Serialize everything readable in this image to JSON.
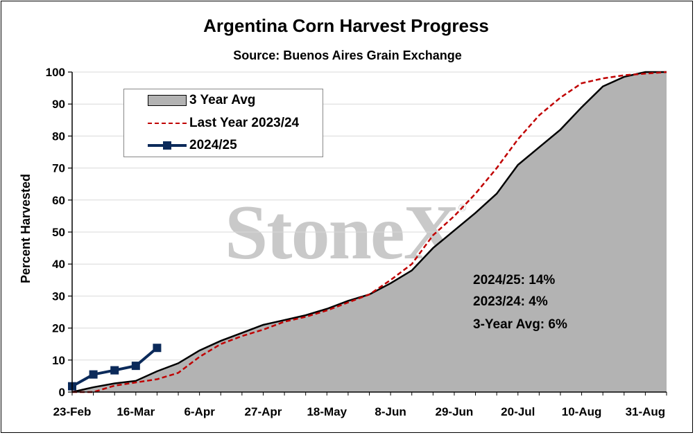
{
  "chart_data": {
    "type": "line",
    "title": "Argentina Corn Harvest Progress",
    "subtitle": "Source: Buenos Aires Grain Exchange",
    "ylabel": "Percent Harvested",
    "xlabel": "",
    "ylim": [
      0,
      100
    ],
    "yticks": [
      0,
      10,
      20,
      30,
      40,
      50,
      60,
      70,
      80,
      90,
      100
    ],
    "x_tick_labels": [
      "23-Feb",
      "16-Mar",
      "6-Apr",
      "27-Apr",
      "18-May",
      "8-Jun",
      "29-Jun",
      "20-Jul",
      "10-Aug",
      "31-Aug"
    ],
    "grid": "horizontal",
    "legend": "top-left",
    "series": [
      {
        "name": "3 Year Avg",
        "style": "area",
        "color": "#b3b3b3",
        "line_color": "#000000",
        "values": [
          0,
          1.5,
          2.7,
          3.5,
          6.5,
          9,
          13,
          16,
          18.5,
          21,
          22.5,
          24,
          26,
          28.5,
          30.5,
          34,
          38,
          45,
          50.5,
          56,
          62,
          71,
          76.5,
          82,
          89,
          95.5,
          98.5,
          100,
          100
        ]
      },
      {
        "name": "Last Year 2023/24",
        "style": "dashed",
        "color": "#c00000",
        "values": [
          0,
          0,
          2,
          3,
          4,
          6,
          11,
          15,
          17.5,
          19.5,
          22,
          23.5,
          25.5,
          28,
          30.5,
          35,
          40,
          49,
          55,
          62,
          70,
          79,
          86.5,
          92,
          96.5,
          98,
          99,
          99.5,
          100
        ]
      },
      {
        "name": "2024/25",
        "style": "line-marker",
        "color": "#0b2a5a",
        "values": [
          1.8,
          5.5,
          6.8,
          8.2,
          13.8
        ]
      }
    ]
  },
  "notes": {
    "current": "2024/25: 14%",
    "last_year": "2023/24: 4%",
    "avg": "3-Year Avg: 6%"
  },
  "watermark": "StoneX",
  "watermark_reg": "®"
}
